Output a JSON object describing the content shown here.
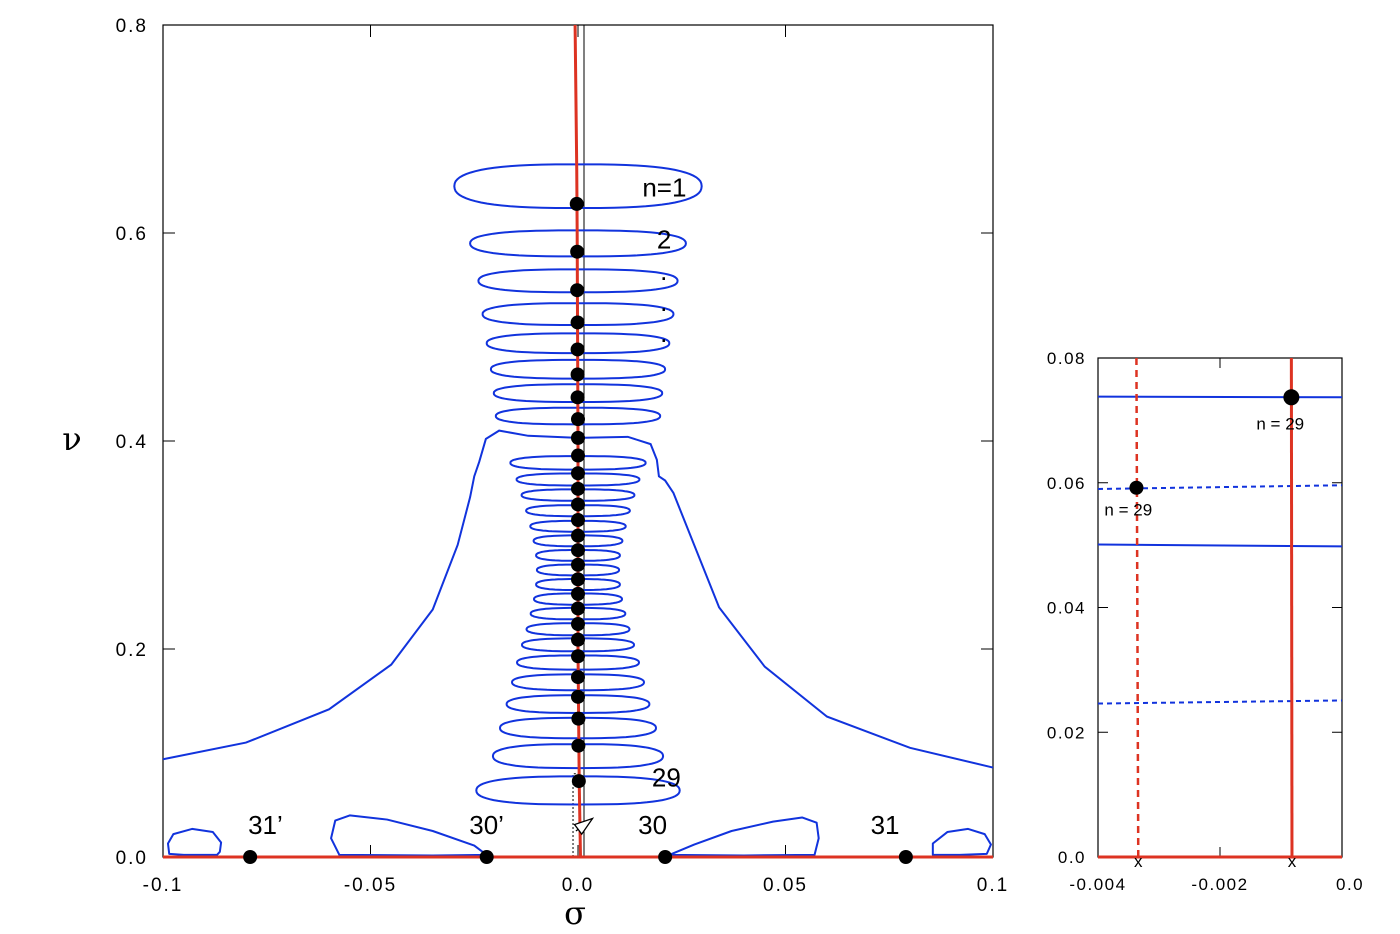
{
  "chart_data": [
    {
      "type": "line",
      "xlabel": "σ",
      "ylabel": "ν",
      "xlim": [
        -0.1,
        0.1
      ],
      "ylim": [
        0.0,
        0.8
      ],
      "x_ticks": [
        {
          "v": -0.1,
          "label": "-0.1"
        },
        {
          "v": -0.05,
          "label": "-0.05"
        },
        {
          "v": 0.0,
          "label": "0.0"
        },
        {
          "v": 0.05,
          "label": "0.05"
        },
        {
          "v": 0.1,
          "label": "0.1"
        }
      ],
      "y_ticks": [
        {
          "v": 0.0,
          "label": "0.0"
        },
        {
          "v": 0.2,
          "label": "0.2"
        },
        {
          "v": 0.4,
          "label": "0.4"
        },
        {
          "v": 0.6,
          "label": "0.6"
        },
        {
          "v": 0.8,
          "label": "0.8"
        }
      ],
      "grid": false,
      "colors": {
        "contour": "#1133dd",
        "curve": "#dd3322",
        "points": "#000000"
      },
      "eigen_curve": [
        {
          "x": -0.0007,
          "y": 0.8
        },
        {
          "x": -0.0005,
          "y": 0.73
        },
        {
          "x": -0.0003,
          "y": 0.66
        },
        {
          "x": -0.0002,
          "y": 0.6
        },
        {
          "x": -0.0001,
          "y": 0.5
        },
        {
          "x": 0.0,
          "y": 0.4
        },
        {
          "x": 0.0,
          "y": 0.2
        },
        {
          "x": 0.0003,
          "y": 0.07
        },
        {
          "x": 0.0006,
          "y": 0.0
        }
      ],
      "eigen_points": [
        {
          "x": -0.0003,
          "y": 0.628
        },
        {
          "x": -0.0002,
          "y": 0.582
        },
        {
          "x": -0.0002,
          "y": 0.545
        },
        {
          "x": -0.0001,
          "y": 0.514
        },
        {
          "x": -0.0001,
          "y": 0.488
        },
        {
          "x": -0.0001,
          "y": 0.464
        },
        {
          "x": -0.0001,
          "y": 0.442
        },
        {
          "x": 0.0,
          "y": 0.421
        },
        {
          "x": 0.0,
          "y": 0.403
        },
        {
          "x": 0.0,
          "y": 0.386
        },
        {
          "x": 0.0,
          "y": 0.369
        },
        {
          "x": 0.0,
          "y": 0.354
        },
        {
          "x": 0.0,
          "y": 0.339
        },
        {
          "x": 0.0,
          "y": 0.324
        },
        {
          "x": 0.0,
          "y": 0.309
        },
        {
          "x": 0.0,
          "y": 0.295
        },
        {
          "x": 0.0,
          "y": 0.281
        },
        {
          "x": 0.0,
          "y": 0.267
        },
        {
          "x": 0.0,
          "y": 0.253
        },
        {
          "x": 0.0,
          "y": 0.239
        },
        {
          "x": 0.0,
          "y": 0.224
        },
        {
          "x": 0.0,
          "y": 0.209
        },
        {
          "x": 0.0,
          "y": 0.193
        },
        {
          "x": 0.0,
          "y": 0.173
        },
        {
          "x": 0.0,
          "y": 0.154
        },
        {
          "x": 0.0001,
          "y": 0.133
        },
        {
          "x": 0.0001,
          "y": 0.107
        },
        {
          "x": 0.0002,
          "y": 0.073
        }
      ],
      "real_points": [
        {
          "x": -0.079,
          "y": 0.0
        },
        {
          "x": -0.022,
          "y": 0.0
        },
        {
          "x": 0.021,
          "y": 0.0
        },
        {
          "x": 0.079,
          "y": 0.0
        }
      ],
      "loops": [
        {
          "y": 0.645,
          "half_width": 0.0298,
          "half_height": 0.021
        },
        {
          "y": 0.59,
          "half_width": 0.026,
          "half_height": 0.0125
        },
        {
          "y": 0.554,
          "half_width": 0.024,
          "half_height": 0.011
        },
        {
          "y": 0.522,
          "half_width": 0.023,
          "half_height": 0.0105
        },
        {
          "y": 0.494,
          "half_width": 0.022,
          "half_height": 0.0095
        },
        {
          "y": 0.469,
          "half_width": 0.021,
          "half_height": 0.009
        },
        {
          "y": 0.446,
          "half_width": 0.0203,
          "half_height": 0.0085
        },
        {
          "y": 0.424,
          "half_width": 0.0198,
          "half_height": 0.008
        },
        {
          "y": 0.379,
          "half_width": 0.0163,
          "half_height": 0.0065
        },
        {
          "y": 0.363,
          "half_width": 0.0148,
          "half_height": 0.0058
        },
        {
          "y": 0.348,
          "half_width": 0.0136,
          "half_height": 0.0055
        },
        {
          "y": 0.333,
          "half_width": 0.0125,
          "half_height": 0.0053
        },
        {
          "y": 0.318,
          "half_width": 0.0115,
          "half_height": 0.0052
        },
        {
          "y": 0.304,
          "half_width": 0.0107,
          "half_height": 0.0052
        },
        {
          "y": 0.29,
          "half_width": 0.0101,
          "half_height": 0.0052
        },
        {
          "y": 0.276,
          "half_width": 0.0099,
          "half_height": 0.0052
        },
        {
          "y": 0.262,
          "half_width": 0.0101,
          "half_height": 0.0053
        },
        {
          "y": 0.248,
          "half_width": 0.0106,
          "half_height": 0.0054
        },
        {
          "y": 0.234,
          "half_width": 0.0114,
          "half_height": 0.0055
        },
        {
          "y": 0.219,
          "half_width": 0.0124,
          "half_height": 0.0058
        },
        {
          "y": 0.204,
          "half_width": 0.0135,
          "half_height": 0.0062
        },
        {
          "y": 0.187,
          "half_width": 0.0147,
          "half_height": 0.0068
        },
        {
          "y": 0.168,
          "half_width": 0.0159,
          "half_height": 0.0076
        },
        {
          "y": 0.147,
          "half_width": 0.0172,
          "half_height": 0.0085
        },
        {
          "y": 0.124,
          "half_width": 0.0188,
          "half_height": 0.0098
        },
        {
          "y": 0.097,
          "half_width": 0.0205,
          "half_height": 0.0115
        },
        {
          "y": 0.064,
          "half_width": 0.0245,
          "half_height": 0.0135
        }
      ],
      "wide_contour": [
        {
          "x": -0.1,
          "y": 0.094
        },
        {
          "x": -0.08,
          "y": 0.11
        },
        {
          "x": -0.06,
          "y": 0.142
        },
        {
          "x": -0.045,
          "y": 0.185
        },
        {
          "x": -0.035,
          "y": 0.238
        },
        {
          "x": -0.029,
          "y": 0.3
        },
        {
          "x": -0.026,
          "y": 0.346
        },
        {
          "x": -0.025,
          "y": 0.366
        },
        {
          "x": -0.0238,
          "y": 0.38
        },
        {
          "x": -0.0222,
          "y": 0.402
        },
        {
          "x": -0.019,
          "y": 0.41
        },
        {
          "x": -0.012,
          "y": 0.405
        },
        {
          "x": 0.0,
          "y": 0.403
        },
        {
          "x": 0.012,
          "y": 0.404
        },
        {
          "x": 0.0175,
          "y": 0.397
        },
        {
          "x": 0.019,
          "y": 0.382
        },
        {
          "x": 0.0195,
          "y": 0.366
        },
        {
          "x": 0.021,
          "y": 0.362
        },
        {
          "x": 0.023,
          "y": 0.35
        },
        {
          "x": 0.028,
          "y": 0.3
        },
        {
          "x": 0.034,
          "y": 0.24
        },
        {
          "x": 0.045,
          "y": 0.183
        },
        {
          "x": 0.06,
          "y": 0.135
        },
        {
          "x": 0.08,
          "y": 0.105
        },
        {
          "x": 0.1,
          "y": 0.086
        }
      ],
      "bottom_lobes": [
        [
          {
            "x": -0.0985,
            "y": 0.003
          },
          {
            "x": -0.0988,
            "y": 0.013
          },
          {
            "x": -0.0975,
            "y": 0.022
          },
          {
            "x": -0.093,
            "y": 0.027
          },
          {
            "x": -0.088,
            "y": 0.024
          },
          {
            "x": -0.086,
            "y": 0.014
          },
          {
            "x": -0.0863,
            "y": 0.005
          },
          {
            "x": -0.087,
            "y": 0.002
          },
          {
            "x": -0.095,
            "y": 0.002
          },
          {
            "x": -0.0985,
            "y": 0.003
          }
        ],
        [
          {
            "x": -0.0575,
            "y": 0.002
          },
          {
            "x": -0.0595,
            "y": 0.018
          },
          {
            "x": -0.0585,
            "y": 0.035
          },
          {
            "x": -0.055,
            "y": 0.04
          },
          {
            "x": -0.046,
            "y": 0.036
          },
          {
            "x": -0.035,
            "y": 0.025
          },
          {
            "x": -0.025,
            "y": 0.011
          },
          {
            "x": -0.022,
            "y": 0.002
          },
          {
            "x": -0.035,
            "y": 0.0015
          },
          {
            "x": -0.0575,
            "y": 0.002
          }
        ],
        [
          {
            "x": 0.022,
            "y": 0.002
          },
          {
            "x": 0.028,
            "y": 0.012
          },
          {
            "x": 0.037,
            "y": 0.025
          },
          {
            "x": 0.047,
            "y": 0.034
          },
          {
            "x": 0.054,
            "y": 0.038
          },
          {
            "x": 0.0575,
            "y": 0.033
          },
          {
            "x": 0.058,
            "y": 0.018
          },
          {
            "x": 0.057,
            "y": 0.002
          },
          {
            "x": 0.04,
            "y": 0.0015
          },
          {
            "x": 0.022,
            "y": 0.002
          }
        ],
        [
          {
            "x": 0.0855,
            "y": 0.002
          },
          {
            "x": 0.0855,
            "y": 0.013
          },
          {
            "x": 0.089,
            "y": 0.024
          },
          {
            "x": 0.094,
            "y": 0.027
          },
          {
            "x": 0.098,
            "y": 0.022
          },
          {
            "x": 0.0995,
            "y": 0.012
          },
          {
            "x": 0.0985,
            "y": 0.003
          },
          {
            "x": 0.092,
            "y": 0.002
          },
          {
            "x": 0.0855,
            "y": 0.002
          }
        ]
      ],
      "annotations": [
        {
          "text": "n=1",
          "x": 0.0155,
          "y": 0.635
        },
        {
          "text": "2",
          "x": 0.019,
          "y": 0.585
        },
        {
          "text": ".",
          "x": 0.0198,
          "y": 0.555
        },
        {
          "text": ".",
          "x": 0.0198,
          "y": 0.525
        },
        {
          "text": ".",
          "x": 0.0198,
          "y": 0.495
        },
        {
          "text": "29",
          "x": 0.0178,
          "y": 0.068
        },
        {
          "text": "31’",
          "x": -0.0795,
          "y": 0.022
        },
        {
          "text": "30’",
          "x": -0.0262,
          "y": 0.022
        },
        {
          "text": "30",
          "x": 0.0145,
          "y": 0.022
        },
        {
          "text": "31",
          "x": 0.0705,
          "y": 0.022
        }
      ],
      "reference_line": {
        "x": 0.0,
        "y_from": 0.0,
        "y_to": 0.8
      },
      "zoom_marker": {
        "x_from": -0.0012,
        "x_to": 0.0,
        "y_from": 0.0,
        "y_to": 0.08
      },
      "arrow": {
        "x1": -0.0005,
        "y1": 0.025,
        "x2": 0.0035,
        "y2": 0.037
      }
    },
    {
      "type": "line",
      "xlabel": "",
      "ylabel": "",
      "xlim": [
        -0.004,
        0.0
      ],
      "ylim": [
        0.0,
        0.08
      ],
      "x_ticks": [
        {
          "v": -0.004,
          "label": "-0.004"
        },
        {
          "v": -0.002,
          "label": "-0.002"
        },
        {
          "v": 0.0,
          "label": "0.0"
        }
      ],
      "y_ticks": [
        {
          "v": 0.0,
          "label": "0.0"
        },
        {
          "v": 0.02,
          "label": "0.02"
        },
        {
          "v": 0.04,
          "label": "0.04"
        },
        {
          "v": 0.06,
          "label": "0.06"
        },
        {
          "v": 0.08,
          "label": "0.08"
        }
      ],
      "grid": false,
      "colors": {
        "contour": "#1133dd",
        "curve": "#dd3322",
        "points": "#000000"
      },
      "solid_contours": [
        {
          "y1": 0.0738,
          "y2": 0.0737
        },
        {
          "y1": 0.0501,
          "y2": 0.0498
        }
      ],
      "dashed_contours": [
        {
          "y1": 0.059,
          "y2": 0.0596
        },
        {
          "y1": 0.0246,
          "y2": 0.0251
        }
      ],
      "solid_curve": {
        "x_top": -0.00083,
        "x_bottom": -0.00082
      },
      "dashed_curve": {
        "x_top": -0.00337,
        "x_bottom": -0.00334
      },
      "points": [
        {
          "x": -0.00083,
          "y": 0.0737,
          "label": "n = 29"
        },
        {
          "x": -0.00337,
          "y": 0.0592,
          "label": "n = 29"
        }
      ],
      "cross_marks": [
        {
          "x": -0.00334,
          "y": 0.0,
          "label": "x"
        },
        {
          "x": -0.00082,
          "y": 0.0,
          "label": "x"
        }
      ]
    }
  ]
}
